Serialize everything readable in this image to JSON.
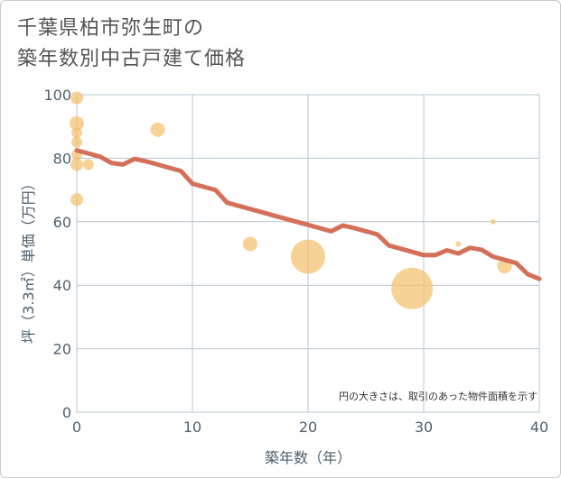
{
  "title_line1": "千葉県柏市弥生町の",
  "title_line2": "築年数別中古戸建て価格",
  "chart_data": {
    "type": "line",
    "title": "千葉県柏市弥生町の 築年数別中古戸建て価格",
    "xlabel": "築年数（年）",
    "ylabel": "坪（3.3㎡）単価（万円）",
    "xlim": [
      0,
      40
    ],
    "ylim": [
      0,
      100
    ],
    "xticks": [
      "0",
      "10",
      "20",
      "30",
      "40"
    ],
    "yticks": [
      "0",
      "20",
      "40",
      "60",
      "80",
      "100"
    ],
    "grid": true,
    "annotation": "円の大きさは、取引のあった物件面積を示す",
    "series": [
      {
        "type": "line",
        "color": "#d4705a",
        "x": [
          0,
          1,
          2,
          3,
          4,
          5,
          6,
          7,
          8,
          9,
          10,
          11,
          12,
          13,
          14,
          15,
          16,
          17,
          18,
          19,
          20,
          21,
          22,
          23,
          24,
          25,
          26,
          27,
          28,
          29,
          30,
          31,
          32,
          33,
          34,
          35,
          36,
          37,
          38,
          39,
          40
        ],
        "y": [
          82.5,
          81.5,
          80.5,
          78.5,
          78,
          79.8,
          79,
          78,
          77,
          76,
          72,
          71,
          70,
          66,
          65,
          64,
          63,
          62,
          61,
          60,
          59,
          58,
          57,
          58.8,
          58,
          57,
          56,
          52.5,
          51.5,
          50.5,
          49.5,
          49.5,
          51,
          50,
          51.8,
          51.2,
          49,
          48,
          47,
          43.5,
          42
        ]
      },
      {
        "type": "bubble",
        "color": "#f3c373",
        "points": [
          {
            "x": 0,
            "y": 99,
            "size": 7
          },
          {
            "x": 0,
            "y": 91,
            "size": 8
          },
          {
            "x": 0,
            "y": 88,
            "size": 6
          },
          {
            "x": 0,
            "y": 85,
            "size": 6
          },
          {
            "x": 0,
            "y": 81,
            "size": 6
          },
          {
            "x": 0,
            "y": 78,
            "size": 7
          },
          {
            "x": 0,
            "y": 67,
            "size": 7
          },
          {
            "x": 1,
            "y": 78,
            "size": 6
          },
          {
            "x": 7,
            "y": 89,
            "size": 8
          },
          {
            "x": 15,
            "y": 53,
            "size": 8
          },
          {
            "x": 20,
            "y": 49,
            "size": 19
          },
          {
            "x": 29,
            "y": 39,
            "size": 23
          },
          {
            "x": 33,
            "y": 53,
            "size": 3
          },
          {
            "x": 36,
            "y": 60,
            "size": 3
          },
          {
            "x": 37,
            "y": 46,
            "size": 8
          }
        ]
      }
    ]
  }
}
